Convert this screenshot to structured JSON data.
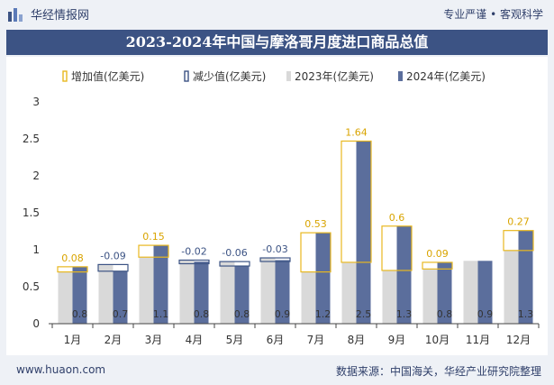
{
  "header": {
    "brand": "华经情报网",
    "tagline": "专业严谨 • 客观科学"
  },
  "footer": {
    "website": "www.huaon.com",
    "source": "数据来源：中国海关，华经产业研究院整理"
  },
  "colors": {
    "increase": "#e8b820",
    "decrease": "#3c5384",
    "y2023": "#d9d9d9",
    "y2024": "#5b6e9c",
    "title_bg": "#3c5384"
  },
  "chart_data": {
    "type": "bar",
    "title": "2023-2024年中国与摩洛哥月度进口商品总值",
    "legend": [
      "增加值(亿美元)",
      "减少值(亿美元)",
      "2023年(亿美元)",
      "2024年(亿美元)"
    ],
    "legend_position": "top",
    "categories": [
      "1月",
      "2月",
      "3月",
      "4月",
      "5月",
      "6月",
      "7月",
      "8月",
      "9月",
      "10月",
      "11月",
      "12月"
    ],
    "series": [
      {
        "name": "2023年(亿美元)",
        "values": [
          0.7,
          0.8,
          0.9,
          0.86,
          0.84,
          0.89,
          0.7,
          0.83,
          0.72,
          0.74,
          0.85,
          0.99
        ]
      },
      {
        "name": "2024年(亿美元)",
        "values": [
          0.77,
          0.71,
          1.06,
          0.84,
          0.78,
          0.86,
          1.23,
          2.47,
          1.32,
          0.83,
          0.85,
          1.26
        ]
      }
    ],
    "bar_labels": [
      "0.8",
      "0.7",
      "1.1",
      "0.8",
      "0.8",
      "0.9",
      "1.2",
      "2.5",
      "1.3",
      "0.8",
      "0.9",
      "1.3"
    ],
    "change_values": [
      0.08,
      -0.09,
      0.15,
      -0.02,
      -0.06,
      -0.03,
      0.53,
      1.64,
      0.6,
      0.09,
      0,
      0.27
    ],
    "change_labels": [
      "0.08",
      "-0.09",
      "0.15",
      "-0.02",
      "-0.06",
      "-0.03",
      "0.53",
      "1.64",
      "0.6",
      "0.09",
      "",
      "0.27"
    ],
    "ylim": [
      0,
      3
    ],
    "yticks": [
      "0",
      "0.5",
      "1",
      "1.5",
      "2",
      "2.5",
      "3"
    ],
    "ytick_values": [
      0,
      0.5,
      1,
      1.5,
      2,
      2.5,
      3
    ],
    "grid": false
  }
}
